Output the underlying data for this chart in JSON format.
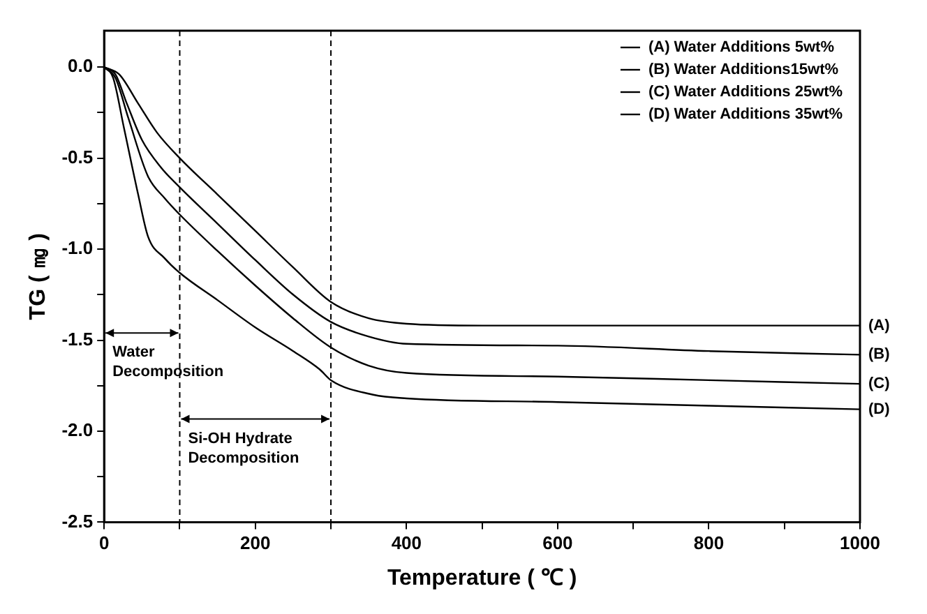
{
  "chart_data": {
    "type": "line",
    "xlabel": "Temperature ( ℃ )",
    "ylabel": "TG ( ㎎ )",
    "xlim": [
      0,
      1000
    ],
    "xticks": [
      0,
      {
        "value": 100,
        "label": null
      },
      200,
      {
        "value": 300,
        "label": null
      },
      400,
      {
        "value": 500,
        "label": null
      },
      600,
      {
        "value": 700,
        "label": null
      },
      800,
      {
        "value": 900,
        "label": null
      },
      1000
    ],
    "ylim": [
      -2.5,
      0.2
    ],
    "yticks": [
      {
        "value": 0,
        "label": "0.0"
      },
      {
        "value": -0.25,
        "label": null
      },
      {
        "value": -0.5,
        "label": "-0.5"
      },
      {
        "value": -0.75,
        "label": null
      },
      {
        "value": -1,
        "label": "-1.0"
      },
      {
        "value": -1.25,
        "label": null
      },
      {
        "value": -1.5,
        "label": "-1.5"
      },
      {
        "value": -1.75,
        "label": null
      },
      {
        "value": -2,
        "label": "-2.0"
      },
      {
        "value": -2.25,
        "label": null
      },
      {
        "value": -2.5,
        "label": "-2.5"
      }
    ],
    "grid": false,
    "legend": "top right",
    "marker": "none",
    "line_style": "solid",
    "series": [
      {
        "name": "(A) Water Additions 5wt%",
        "color": "#000000",
        "x": [
          0,
          20,
          45,
          70,
          100,
          150,
          200,
          250,
          300,
          350,
          400,
          500,
          600,
          800,
          1000
        ],
        "values": [
          0,
          -0.04,
          -0.2,
          -0.36,
          -0.5,
          -0.7,
          -0.9,
          -1.1,
          -1.29,
          -1.38,
          -1.41,
          -1.42,
          -1.42,
          -1.42,
          -1.42
        ]
      },
      {
        "name": "(B) Water Additions15wt%",
        "color": "#000000",
        "x": [
          0,
          15,
          30,
          50,
          75,
          100,
          150,
          200,
          250,
          300,
          350,
          400,
          600,
          800,
          1000
        ],
        "values": [
          0,
          -0.04,
          -0.2,
          -0.4,
          -0.55,
          -0.66,
          -0.86,
          -1.06,
          -1.25,
          -1.4,
          -1.48,
          -1.52,
          -1.53,
          -1.56,
          -1.58
        ]
      },
      {
        "name": "(C) Water Additions 25wt%",
        "color": "#000000",
        "x": [
          0,
          15,
          32,
          58,
          80,
          100,
          150,
          200,
          250,
          300,
          350,
          400,
          600,
          800,
          1000
        ],
        "values": [
          0,
          -0.06,
          -0.28,
          -0.6,
          -0.72,
          -0.81,
          -1.01,
          -1.2,
          -1.38,
          -1.54,
          -1.64,
          -1.68,
          -1.7,
          -1.72,
          -1.74
        ]
      },
      {
        "name": "(D) Water Additions 35wt%",
        "color": "#000000",
        "x": [
          0,
          12,
          26,
          45,
          58,
          80,
          100,
          150,
          200,
          250,
          285,
          300,
          356,
          400,
          600,
          800,
          1000
        ],
        "values": [
          0,
          -0.06,
          -0.33,
          -0.7,
          -0.93,
          -1.05,
          -1.13,
          -1.28,
          -1.43,
          -1.56,
          -1.66,
          -1.72,
          -1.8,
          -1.82,
          -1.84,
          -1.86,
          -1.88
        ]
      }
    ],
    "ref_lines": [
      {
        "axis": "x",
        "value": 100,
        "line_style": "dashed",
        "color": "#000000"
      },
      {
        "axis": "x",
        "value": 300,
        "line_style": "dashed",
        "color": "#000000"
      }
    ],
    "annotations": [
      "Water Decomposition",
      "Si-OH Hydrate Decomposition",
      "(A)",
      "(B)",
      "(C)",
      "(D)"
    ]
  }
}
